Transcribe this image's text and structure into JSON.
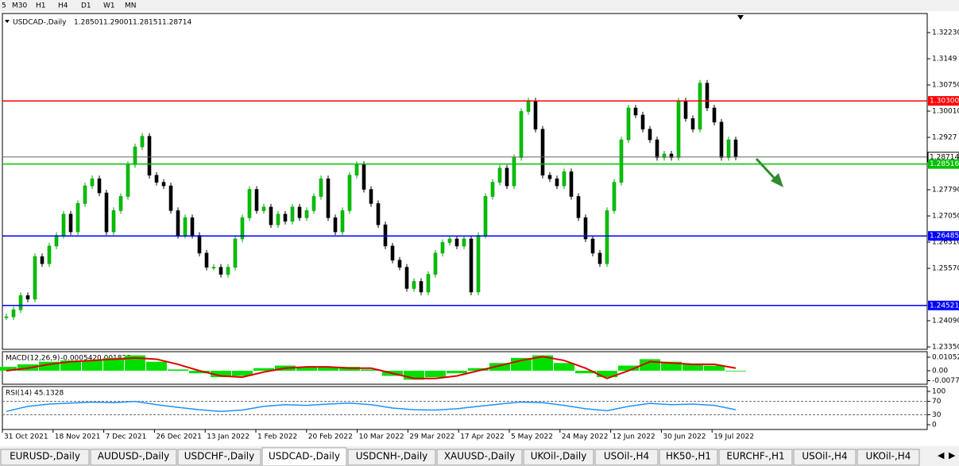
{
  "toolbar": {
    "timeframes": [
      "5",
      "M30",
      "H1",
      "H4",
      "D1",
      "W1",
      "MN"
    ]
  },
  "chart": {
    "symbol": "USDCAD-,Daily",
    "ohlc": [
      1.28501,
      1.29001,
      1.28151,
      1.28714
    ],
    "closes": [
      1.242,
      1.244,
      1.248,
      1.247,
      1.259,
      1.257,
      1.262,
      1.265,
      1.271,
      1.266,
      1.274,
      1.279,
      1.281,
      1.277,
      1.266,
      1.272,
      1.276,
      1.285,
      1.29,
      1.293,
      1.282,
      1.28,
      1.279,
      1.272,
      1.265,
      1.27,
      1.265,
      1.26,
      1.256,
      1.256,
      1.254,
      1.256,
      1.264,
      1.27,
      1.278,
      1.272,
      1.273,
      1.268,
      1.271,
      1.269,
      1.273,
      1.27,
      1.272,
      1.276,
      1.281,
      1.27,
      1.266,
      1.272,
      1.282,
      1.285,
      1.278,
      1.274,
      1.268,
      1.262,
      1.258,
      1.256,
      1.25,
      1.252,
      1.249,
      1.254,
      1.26,
      1.263,
      1.264,
      1.262,
      1.264,
      1.249,
      1.265,
      1.276,
      1.28,
      1.284,
      1.279,
      1.287,
      1.3,
      1.303,
      1.295,
      1.282,
      1.281,
      1.279,
      1.283,
      1.276,
      1.27,
      1.264,
      1.26,
      1.257,
      1.272,
      1.28,
      1.292,
      1.301,
      1.299,
      1.295,
      1.292,
      1.287,
      1.288,
      1.287,
      1.303,
      1.298,
      1.295,
      1.308,
      1.301,
      1.297,
      1.287,
      1.292,
      1.28714
    ],
    "ylim": [
      1.2335,
      1.3223
    ],
    "yticks": [
      {
        "value": 1.3223,
        "label": "1.32230"
      },
      1.3149,
      {
        "value": 1.3075,
        "label": "1.30750"
      },
      {
        "value": 1.3001,
        "label": "1.30010"
      },
      1.2927,
      {
        "value": 1.2779,
        "label": "1.27790"
      },
      {
        "value": 1.2705,
        "label": "1.27050"
      },
      {
        "value": 1.2631,
        "label": "1.26310"
      },
      {
        "value": 1.2557,
        "label": "1.25570"
      },
      {
        "value": 1.2409,
        "label": "1.24090"
      },
      {
        "value": 1.2335,
        "label": "1.23350"
      }
    ],
    "current": 1.28714,
    "levels": [
      {
        "value": {
          "value": 1.303,
          "label": "1.30300"
        },
        "color": "#ff0000"
      },
      {
        "value": 1.28516,
        "color": "#00c000"
      },
      {
        "value": 1.26485,
        "color": "#0000ff"
      },
      {
        "value": 1.24521,
        "color": "#0000ff"
      }
    ]
  },
  "macd": {
    "title": "MACD(12,26,9)",
    "main": -0.000542,
    "signal_value": 0.001828,
    "yticks": [
      0.01052,
      {
        "value": 0,
        "label": "0.00"
      },
      -0.00774
    ],
    "histogram": [
      0.003,
      0.005,
      0.007,
      0.008,
      0.008,
      0.01,
      0.012,
      0.007,
      0.001,
      -0.002,
      -0.005,
      -0.004,
      0.002,
      0.004,
      0.003,
      0.003,
      0.003,
      0.001,
      -0.004,
      -0.007,
      -0.005,
      -0.002,
      0.002,
      0.006,
      0.01,
      0.012,
      0.006,
      -0.002,
      -0.005,
      0.004,
      0.009,
      0.007,
      0.005,
      0.004,
      -0.0005
    ],
    "signal": [
      0.0,
      0.002,
      0.005,
      0.007,
      0.008,
      0.009,
      0.01,
      0.009,
      0.005,
      0.0,
      -0.004,
      -0.005,
      -0.001,
      0.002,
      0.003,
      0.003,
      0.002,
      0.002,
      -0.002,
      -0.006,
      -0.006,
      -0.004,
      0.0,
      0.004,
      0.008,
      0.011,
      0.008,
      0.002,
      -0.006,
      0.0,
      0.007,
      0.006,
      0.005,
      0.005,
      0.002
    ]
  },
  "rsi": {
    "title": "RSI(14)",
    "value": 45.1328,
    "yticks": [
      100,
      70,
      30,
      0
    ],
    "values": [
      40,
      55,
      62,
      65,
      68,
      66,
      70,
      60,
      52,
      45,
      40,
      44,
      55,
      60,
      58,
      62,
      65,
      60,
      50,
      45,
      44,
      48,
      55,
      62,
      68,
      66,
      58,
      48,
      42,
      55,
      64,
      60,
      62,
      58,
      45
    ]
  },
  "dates": [
    "31 Oct 2021",
    "18 Nov 2021",
    "7 Dec 2021",
    "26 Dec 2021",
    "13 Jan 2022",
    "1 Feb 2022",
    "20 Feb 2022",
    "10 Mar 2022",
    "29 Mar 2022",
    "17 Apr 2022",
    "5 May 2022",
    "24 May 2022",
    "12 Jun 2022",
    "30 Jun 2022",
    "19 Jul 2022"
  ],
  "tabs": {
    "items": [
      "EURUSD-,Daily",
      "AUDUSD-,Daily",
      "USDCHF-,Daily",
      "USDCAD-,Daily",
      "USDCNH-,Daily",
      "XAUUSD-,Daily",
      "UKOil-,Daily",
      "USOil-,H4",
      "HK50-,H1",
      "EURCHF-,H1",
      "USOil-,H4",
      "UKOil-,H4"
    ],
    "active": 3
  }
}
